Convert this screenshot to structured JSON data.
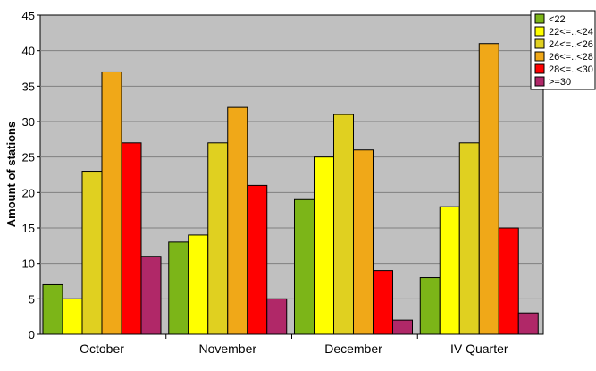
{
  "chart_data": {
    "type": "bar",
    "title": "",
    "xlabel": "",
    "ylabel": "Amount of stations",
    "ylim": [
      0,
      45
    ],
    "yticks": [
      0,
      5,
      10,
      15,
      20,
      25,
      30,
      35,
      40,
      45
    ],
    "grid": true,
    "legend_position": "top-right",
    "categories": [
      "October",
      "November",
      "December",
      "IV Quarter"
    ],
    "series": [
      {
        "name": "<22",
        "color": "#7cb518",
        "values": [
          7,
          13,
          19,
          8
        ]
      },
      {
        "name": "22<=..<24",
        "color": "#ffff00",
        "values": [
          5,
          14,
          25,
          18
        ]
      },
      {
        "name": "24<=..<26",
        "color": "#e0d020",
        "values": [
          23,
          27,
          31,
          27
        ]
      },
      {
        "name": "26<=..<28",
        "color": "#f0a818",
        "values": [
          37,
          32,
          26,
          41
        ]
      },
      {
        "name": "28<=..<30",
        "color": "#ff0000",
        "values": [
          27,
          21,
          9,
          15
        ]
      },
      {
        "name": ">=30",
        "color": "#b02868",
        "values": [
          11,
          5,
          2,
          3
        ]
      }
    ]
  }
}
